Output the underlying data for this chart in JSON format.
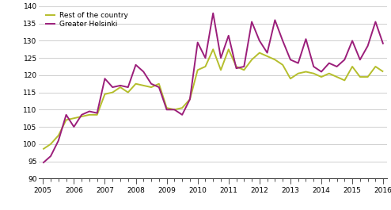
{
  "helsinki": [
    94.5,
    96.5,
    101.0,
    108.5,
    105.0,
    108.5,
    109.5,
    109.0,
    119.0,
    116.5,
    117.0,
    116.5,
    123.0,
    121.0,
    117.5,
    116.5,
    110.0,
    110.0,
    108.5,
    113.0,
    129.5,
    125.0,
    138.0,
    125.0,
    131.5,
    122.0,
    122.5,
    135.5,
    130.0,
    126.5,
    136.0,
    130.0,
    124.5,
    123.5,
    130.5,
    122.5,
    121.0,
    123.5,
    122.5,
    124.5,
    130.0,
    124.5,
    128.5,
    135.5,
    129.0
  ],
  "rest": [
    98.5,
    100.0,
    102.5,
    107.0,
    107.5,
    108.0,
    108.5,
    108.5,
    114.5,
    115.0,
    116.5,
    115.0,
    117.5,
    117.0,
    116.5,
    117.5,
    110.5,
    110.0,
    110.5,
    113.0,
    121.5,
    122.5,
    127.5,
    121.5,
    127.5,
    122.5,
    121.5,
    124.5,
    126.5,
    125.5,
    124.5,
    123.0,
    119.0,
    120.5,
    121.0,
    120.5,
    119.5,
    120.5,
    119.5,
    118.5,
    122.5,
    119.5,
    119.5,
    122.5,
    121.0
  ],
  "n_quarters": 45,
  "ylim": [
    90,
    140
  ],
  "yticks": [
    90,
    95,
    100,
    105,
    110,
    115,
    120,
    125,
    130,
    135,
    140
  ],
  "year_labels": [
    "2005",
    "2006",
    "2007",
    "2008",
    "2009",
    "2010",
    "2011",
    "2012",
    "2013",
    "2014",
    "2015",
    "2016"
  ],
  "year_positions": [
    0,
    4,
    8,
    12,
    16,
    20,
    24,
    28,
    32,
    36,
    40,
    44
  ],
  "color_helsinki": "#9b1e7a",
  "color_rest": "#b5be2c",
  "legend_helsinki": "Greater Helsinki",
  "legend_rest": "Rest of the country",
  "line_width": 1.4,
  "grid_color": "#c8c8c8",
  "background_color": "#ffffff"
}
